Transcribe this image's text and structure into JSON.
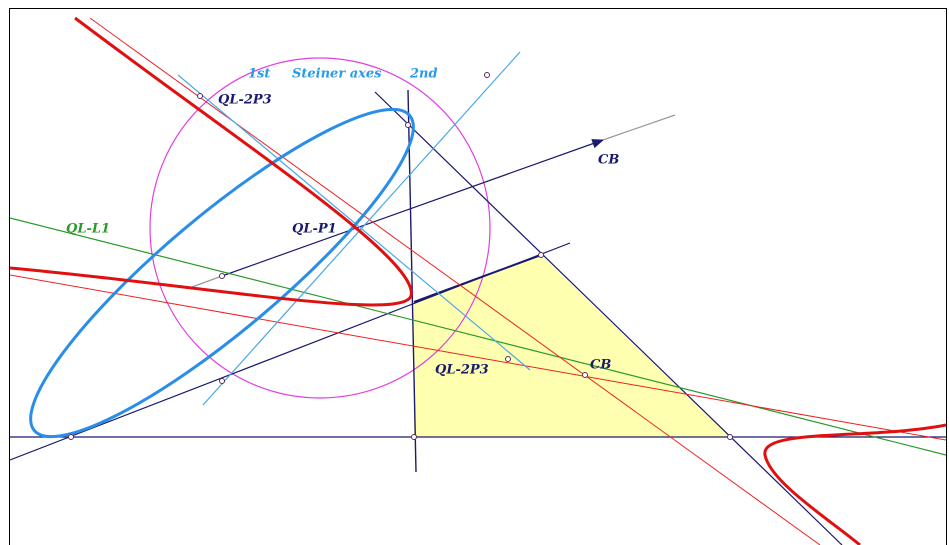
{
  "labels": {
    "first": "1st",
    "steiner_axes": "Steiner axes",
    "second": "2nd",
    "ql_2p3_top": "QL-2P3",
    "cb_arrow": "CB",
    "ql_l1": "QL-L1",
    "ql_p1": "QL-P1",
    "ql_2p3_bottom": "QL-2P3",
    "cb_point": "CB"
  }
}
